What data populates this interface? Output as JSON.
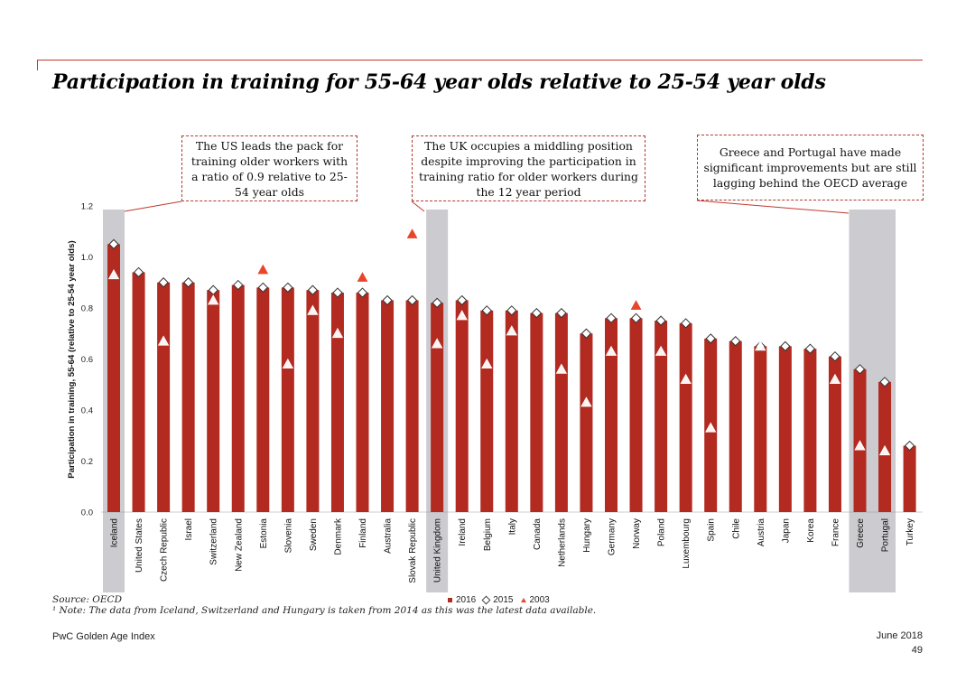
{
  "header": {
    "title": "Participation in training for 55-64 year olds relative to 25-54 year olds"
  },
  "callouts": {
    "us": "The US leads the pack for training older workers with a ratio of 0.9 relative to 25-54 year olds",
    "uk": "The UK occupies a middling position despite improving the participation in training ratio for older workers during the 12 year period",
    "greece_portugal": "Greece and Portugal have made significant improvements but are still lagging behind the OECD average"
  },
  "footer": {
    "source": "Source: OECD",
    "note": "¹ Note: The data from Iceland, Switzerland and Hungary is taken from 2014 as this was the latest data available.",
    "left": "PwC Golden Age Index",
    "date": "June 2018",
    "page": "49"
  },
  "legend": {
    "s2016": "2016",
    "s2015": "2015",
    "s2003": "2003"
  },
  "colors": {
    "bar": "#b22a20",
    "triangle_2003": "#e8452b",
    "highlight": "#cccbcf",
    "accent": "#c0392b"
  },
  "chart_data": {
    "type": "bar",
    "title": "Participation in training for 55-64 year olds relative to 25-54 year olds",
    "ylabel": "Participation in training, 55-64 (relative to 25-54 year olds)",
    "xlabel": "",
    "ylim": [
      0,
      1.2
    ],
    "yticks": [
      "0.0",
      "0.2",
      "0.4",
      "0.6",
      "0.8",
      "1.0",
      "1.2"
    ],
    "grid": false,
    "legend_position": "bottom",
    "highlighted_categories": [
      "Iceland",
      "United Kingdom",
      "Greece",
      "Portugal"
    ],
    "categories": [
      "Iceland",
      "United States",
      "Czech Republic",
      "Israel",
      "Switzerland",
      "New Zealand",
      "Estonia",
      "Slovenia",
      "Sweden",
      "Denmark",
      "Finland",
      "Australia",
      "Slovak Republic",
      "United Kingdom",
      "Ireland",
      "Belgium",
      "Italy",
      "Canada",
      "Netherlands",
      "Hungary",
      "Germany",
      "Norway",
      "Poland",
      "Luxembourg",
      "Spain",
      "Chile",
      "Austria",
      "Japan",
      "Korea",
      "France",
      "Greece",
      "Portugal",
      "Turkey"
    ],
    "series": [
      {
        "name": "2016",
        "marker": "bar",
        "values": [
          1.05,
          0.94,
          0.9,
          0.9,
          0.87,
          0.89,
          0.88,
          0.88,
          0.87,
          0.86,
          0.86,
          0.83,
          0.83,
          0.82,
          0.83,
          0.79,
          0.79,
          0.78,
          0.78,
          0.7,
          0.76,
          0.76,
          0.75,
          0.74,
          0.68,
          0.67,
          0.65,
          0.65,
          0.64,
          0.61,
          0.56,
          0.51,
          0.26
        ]
      },
      {
        "name": "2015",
        "marker": "diamond",
        "values": [
          1.05,
          0.94,
          0.9,
          0.9,
          0.87,
          0.89,
          0.88,
          0.88,
          0.87,
          0.86,
          0.86,
          0.83,
          0.83,
          0.82,
          0.83,
          0.79,
          0.79,
          0.78,
          0.78,
          0.7,
          0.76,
          0.76,
          0.75,
          0.74,
          0.68,
          0.67,
          0.65,
          0.65,
          0.64,
          0.61,
          0.56,
          0.51,
          0.26
        ]
      },
      {
        "name": "2003",
        "marker": "triangle",
        "values": [
          0.93,
          null,
          0.67,
          null,
          0.83,
          null,
          0.95,
          0.58,
          0.79,
          0.7,
          0.92,
          null,
          1.09,
          0.66,
          0.77,
          0.58,
          0.71,
          null,
          0.56,
          0.43,
          0.63,
          0.81,
          0.63,
          0.52,
          0.33,
          null,
          0.65,
          null,
          null,
          0.52,
          0.26,
          0.24,
          null
        ]
      }
    ]
  }
}
